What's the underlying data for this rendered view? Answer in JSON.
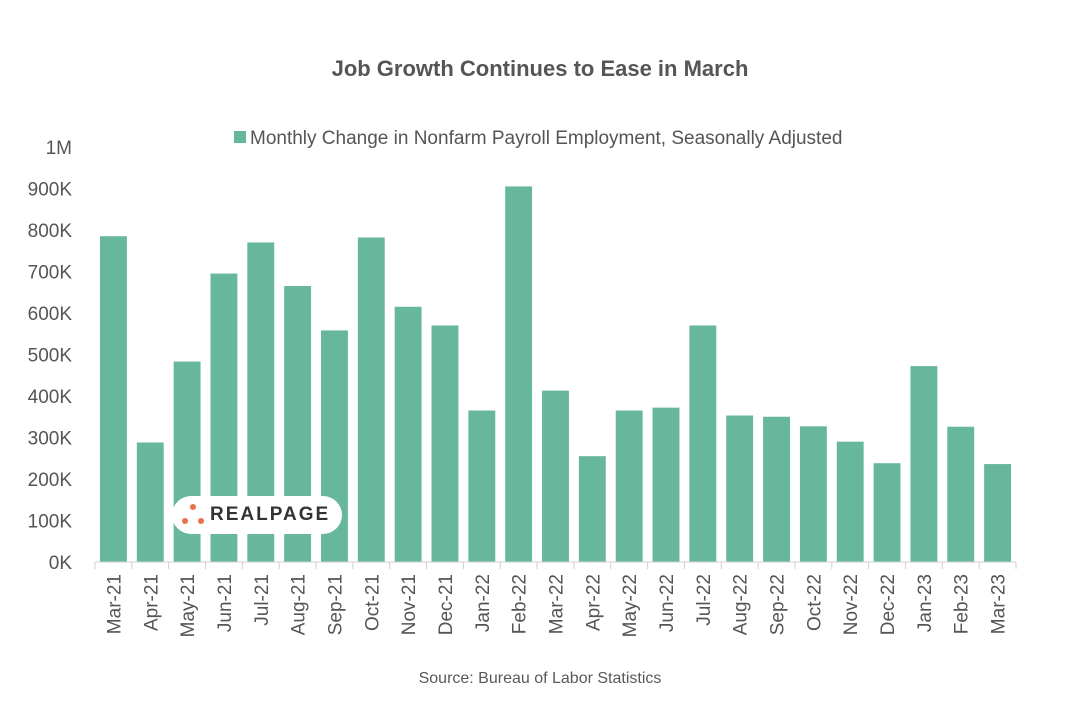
{
  "chart_data": {
    "type": "bar",
    "title": "Job Growth Continues to Ease in March",
    "legend": "Monthly Change in Nonfarm Payroll Employment, Seasonally Adjusted",
    "legend_position": "top-center",
    "source": "Source: Bureau of Labor Statistics",
    "bar_color": "#67b79c",
    "xlabel": "",
    "ylabel": "",
    "ylim": [
      0,
      1000000
    ],
    "yticks": [
      0,
      100000,
      200000,
      300000,
      400000,
      500000,
      600000,
      700000,
      800000,
      900000,
      1000000
    ],
    "ytick_labels": [
      "0K",
      "100K",
      "200K",
      "300K",
      "400K",
      "500K",
      "600K",
      "700K",
      "800K",
      "900K",
      "1M"
    ],
    "grid": false,
    "categories": [
      "Mar-21",
      "Apr-21",
      "May-21",
      "Jun-21",
      "Jul-21",
      "Aug-21",
      "Sep-21",
      "Oct-21",
      "Nov-21",
      "Dec-21",
      "Jan-22",
      "Feb-22",
      "Mar-22",
      "Apr-22",
      "May-22",
      "Jun-22",
      "Jul-22",
      "Aug-22",
      "Sep-22",
      "Oct-22",
      "Nov-22",
      "Dec-22",
      "Jan-23",
      "Feb-23",
      "Mar-23"
    ],
    "values": [
      785000,
      288000,
      483000,
      695000,
      770000,
      665000,
      558000,
      782000,
      615000,
      570000,
      365000,
      905000,
      413000,
      255000,
      365000,
      372000,
      570000,
      353000,
      350000,
      327000,
      290000,
      238000,
      472000,
      326000,
      236000
    ]
  },
  "watermark": {
    "text": "REALPAGE",
    "dot_color": "#e8734a"
  }
}
